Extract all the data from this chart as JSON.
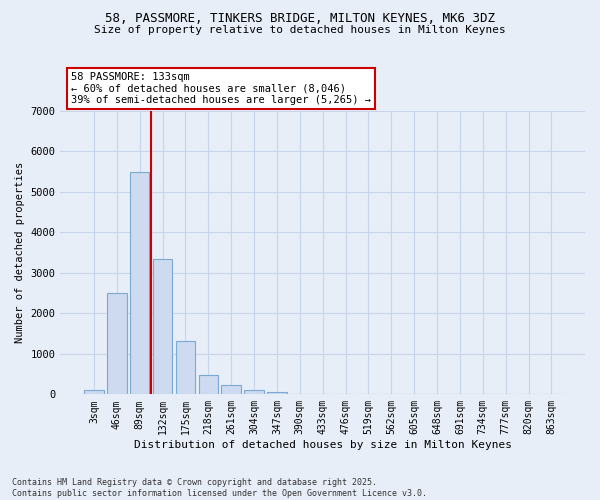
{
  "title1": "58, PASSMORE, TINKERS BRIDGE, MILTON KEYNES, MK6 3DZ",
  "title2": "Size of property relative to detached houses in Milton Keynes",
  "xlabel": "Distribution of detached houses by size in Milton Keynes",
  "ylabel": "Number of detached properties",
  "bar_labels": [
    "3sqm",
    "46sqm",
    "89sqm",
    "132sqm",
    "175sqm",
    "218sqm",
    "261sqm",
    "304sqm",
    "347sqm",
    "390sqm",
    "433sqm",
    "476sqm",
    "519sqm",
    "562sqm",
    "605sqm",
    "648sqm",
    "691sqm",
    "734sqm",
    "777sqm",
    "820sqm",
    "863sqm"
  ],
  "bar_heights": [
    100,
    2500,
    5500,
    3350,
    1320,
    480,
    230,
    100,
    60,
    0,
    0,
    0,
    0,
    0,
    0,
    0,
    0,
    0,
    0,
    0,
    0
  ],
  "bar_color": "#cddaf0",
  "bar_edge_color": "#7aaad4",
  "grid_color": "#c8d4e8",
  "background_color": "#e8eef8",
  "vline_x": 2.5,
  "vline_color": "#cc0000",
  "annotation_line1": "58 PASSMORE: 133sqm",
  "annotation_line2": "← 60% of detached houses are smaller (8,046)",
  "annotation_line3": "39% of semi-detached houses are larger (5,265) →",
  "annotation_box_color": "#ffffff",
  "annotation_box_edge": "#cc0000",
  "ylim": [
    0,
    7000
  ],
  "yticks": [
    0,
    1000,
    2000,
    3000,
    4000,
    5000,
    6000,
    7000
  ],
  "footer": "Contains HM Land Registry data © Crown copyright and database right 2025.\nContains public sector information licensed under the Open Government Licence v3.0.",
  "font_family": "monospace"
}
